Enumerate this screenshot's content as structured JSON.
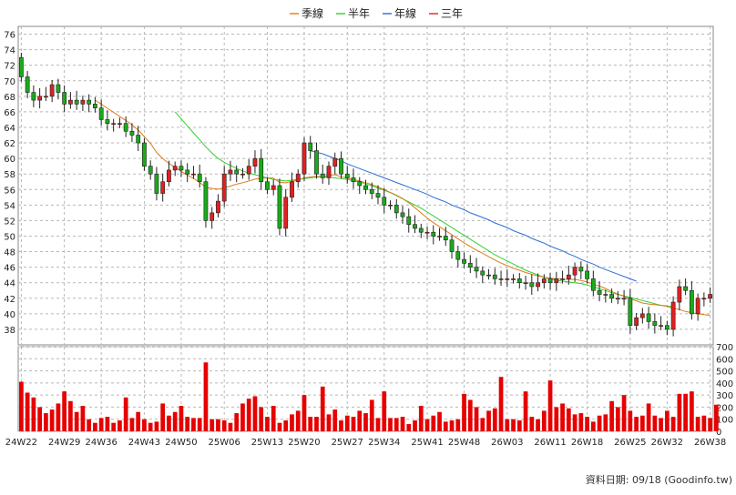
{
  "legend": [
    {
      "label": "季線",
      "color": "#e07b1a"
    },
    {
      "label": "半年",
      "color": "#2fd12f"
    },
    {
      "label": "年線",
      "color": "#2b6cd6"
    },
    {
      "label": "三年",
      "color": "#e02020"
    }
  ],
  "footer": {
    "text": "資料日期: 09/18  (Goodinfo.tw)"
  },
  "chart_data": [
    {
      "type": "candlestick",
      "title": "",
      "xlabel": "",
      "ylabel": "",
      "ylim": [
        36,
        77
      ],
      "y_ticks": [
        38,
        40,
        42,
        44,
        46,
        48,
        50,
        52,
        54,
        56,
        58,
        60,
        62,
        64,
        66,
        68,
        70,
        72,
        74,
        76
      ],
      "x_tick_labels": [
        "24W22",
        "24W29",
        "24W36",
        "24W43",
        "24W50",
        "25W06",
        "25W13",
        "25W20",
        "25W27",
        "25W34",
        "25W41",
        "25W48",
        "26W03",
        "26W11",
        "26W18",
        "26W25",
        "26W32",
        "26W38"
      ],
      "grid": true,
      "legend_position": "top",
      "up_color": "#e02020",
      "down_color": "#1aaa1a",
      "close": [
        70.5,
        68.5,
        67.5,
        68,
        68,
        69.5,
        68.5,
        67,
        67.5,
        67,
        67.5,
        67,
        66.5,
        65,
        64.5,
        64.5,
        64.5,
        63.5,
        63,
        62,
        59,
        58,
        55.5,
        57,
        58.5,
        59,
        58.5,
        58,
        58,
        57,
        52,
        53,
        54.5,
        58,
        58.5,
        58,
        58,
        59,
        60,
        57,
        56,
        56.5,
        51,
        55,
        57,
        58,
        62,
        61,
        58,
        57.5,
        59,
        60,
        58,
        57.5,
        57,
        56.5,
        56,
        55.5,
        55,
        54,
        54,
        53,
        52.5,
        51.5,
        51,
        50.5,
        50.5,
        50,
        50,
        49.5,
        48,
        47,
        46.5,
        46,
        45.5,
        45,
        45,
        44.5,
        44.5,
        44.5,
        44.5,
        44,
        44,
        43.5,
        44,
        44.5,
        44,
        44.5,
        44.5,
        45,
        46,
        45.5,
        44.5,
        43,
        42.5,
        42.5,
        42,
        42,
        42,
        38.5,
        39.5,
        40,
        39,
        38.5,
        38.5,
        38,
        41.5,
        43.5,
        43,
        40,
        42,
        42,
        42.5
      ],
      "ma_quarter": [
        null,
        null,
        null,
        null,
        null,
        null,
        null,
        null,
        null,
        null,
        null,
        null,
        67.5,
        66.98,
        66.46,
        65.94,
        65.42,
        64.9,
        64.34,
        63.66,
        62.81,
        61.93,
        60.77,
        59.97,
        59.37,
        58.87,
        58.34,
        57.86,
        57.43,
        56.91,
        56.28,
        56.14,
        56.04,
        56.22,
        56.44,
        56.69,
        56.87,
        57.1,
        57.33,
        57.45,
        57.49,
        57.47,
        56.91,
        56.86,
        57.04,
        57.21,
        57.5,
        57.62,
        57.68,
        57.71,
        57.81,
        57.9,
        57.65,
        57.46,
        57.29,
        57.1,
        56.88,
        56.64,
        56.35,
        55.98,
        55.63,
        55.26,
        54.84,
        54.29,
        53.65,
        52.98,
        52.33,
        51.73,
        51.2,
        50.69,
        50.19,
        49.66,
        49.13,
        48.66,
        48.2,
        47.8,
        47.35,
        46.93,
        46.53,
        46.19,
        45.86,
        45.6,
        45.31,
        45.08,
        44.88,
        44.71,
        44.6,
        44.51,
        44.45,
        44.44,
        44.44,
        44.29,
        44.09,
        43.81,
        43.57,
        43.26,
        42.86,
        42.53,
        42.25,
        41.94,
        41.67,
        41.39,
        41.26,
        41.19,
        41.08,
        40.94,
        40.72,
        40.55,
        40.3,
        40.12,
        40.0,
        39.89,
        39.81
      ],
      "ma_half": [
        null,
        null,
        null,
        null,
        null,
        null,
        null,
        null,
        null,
        null,
        null,
        null,
        null,
        null,
        null,
        null,
        null,
        null,
        null,
        null,
        null,
        null,
        null,
        null,
        null,
        66.0,
        65.1,
        64.2,
        63.3,
        62.4,
        61.5,
        60.7,
        60.0,
        59.5,
        59.1,
        58.7,
        58.4,
        58.1,
        57.9,
        57.7,
        57.5,
        57.3,
        57.2,
        57.1,
        57.2,
        57.3,
        57.4,
        57.5,
        57.6,
        57.6,
        57.6,
        57.5,
        57.4,
        57.3,
        57.1,
        57.0,
        56.7,
        56.5,
        56.2,
        55.9,
        55.6,
        55.2,
        54.8,
        54.4,
        54.0,
        53.6,
        53.1,
        52.6,
        52.1,
        51.6,
        51.1,
        50.6,
        50.1,
        49.6,
        49.1,
        48.6,
        48.1,
        47.6,
        47.2,
        46.8,
        46.4,
        46.0,
        45.6,
        45.3,
        45.0,
        44.7,
        44.5,
        44.3,
        44.2,
        44.1,
        44.0,
        43.9,
        43.7,
        43.5,
        43.2,
        43.0,
        42.7,
        42.5,
        42.3,
        42.1,
        41.9,
        41.7,
        41.5,
        41.3,
        41.1,
        41.0,
        40.9
      ],
      "ma_year": [
        null,
        null,
        null,
        null,
        null,
        null,
        null,
        null,
        null,
        null,
        null,
        null,
        null,
        null,
        null,
        null,
        null,
        null,
        null,
        null,
        null,
        null,
        null,
        null,
        null,
        null,
        null,
        null,
        null,
        null,
        null,
        null,
        null,
        null,
        null,
        null,
        null,
        null,
        null,
        null,
        null,
        null,
        null,
        null,
        null,
        null,
        null,
        61.0,
        60.8,
        60.6,
        60.3,
        60.0,
        59.7,
        59.3,
        59.0,
        58.7,
        58.4,
        58.1,
        57.8,
        57.5,
        57.2,
        56.9,
        56.6,
        56.3,
        56.0,
        55.7,
        55.4,
        55.0,
        54.7,
        54.4,
        54.0,
        53.7,
        53.4,
        53.0,
        52.7,
        52.4,
        52.1,
        51.7,
        51.4,
        51.1,
        50.7,
        50.4,
        50.1,
        49.7,
        49.4,
        49.1,
        48.7,
        48.4,
        48.1,
        47.7,
        47.4,
        47.0,
        46.7,
        46.4,
        46.0,
        45.7,
        45.4,
        45.1,
        44.8,
        44.5,
        44.2
      ]
    },
    {
      "type": "bar",
      "title": "",
      "xlabel": "",
      "ylabel": "",
      "ylim": [
        0,
        700
      ],
      "y_ticks": [
        0,
        100,
        200,
        300,
        400,
        500,
        600,
        700
      ],
      "grid": true,
      "bar_color": "#e60000",
      "values": [
        410,
        320,
        280,
        200,
        150,
        180,
        230,
        330,
        250,
        160,
        210,
        100,
        70,
        110,
        120,
        70,
        90,
        280,
        110,
        160,
        100,
        70,
        80,
        230,
        130,
        160,
        210,
        120,
        110,
        110,
        570,
        100,
        100,
        90,
        70,
        150,
        230,
        270,
        290,
        200,
        120,
        210,
        70,
        90,
        140,
        170,
        300,
        120,
        120,
        370,
        140,
        180,
        90,
        130,
        120,
        170,
        150,
        260,
        110,
        330,
        110,
        110,
        120,
        60,
        90,
        210,
        100,
        130,
        160,
        80,
        90,
        100,
        310,
        260,
        200,
        110,
        170,
        190,
        450,
        100,
        100,
        90,
        330,
        120,
        100,
        170,
        420,
        200,
        230,
        190,
        140,
        150,
        120,
        80,
        130,
        140,
        250,
        200,
        300,
        170,
        120,
        130,
        230,
        130,
        110,
        170,
        120,
        310,
        310,
        330,
        120,
        130,
        110,
        220
      ]
    }
  ]
}
